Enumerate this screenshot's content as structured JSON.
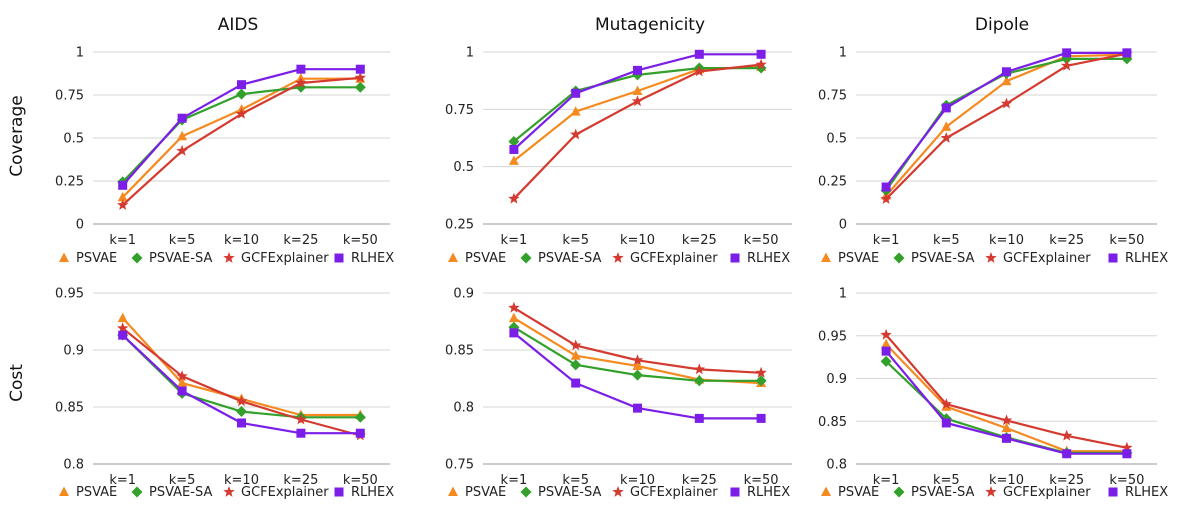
{
  "colors": {
    "PSVAE": "#f58a21",
    "PSVAE-SA": "#33a02c",
    "GCFExplainer": "#d43a2f",
    "RLHEX": "#7b1fe8"
  },
  "markers": {
    "PSVAE": "triangle",
    "PSVAE-SA": "diamond",
    "GCFExplainer": "star",
    "RLHEX": "square"
  },
  "row_labels": [
    "Coverage",
    "Cost"
  ],
  "chart_data": [
    {
      "type": "line",
      "title": "AIDS",
      "ylabel": "Coverage",
      "categories": [
        "k=1",
        "k=5",
        "k=10",
        "k=25",
        "k=50"
      ],
      "ylim": [
        0,
        1
      ],
      "yticks": [
        "0",
        "0.25",
        "0.5",
        "0.75",
        "1"
      ],
      "grid": true,
      "legend": "bottom",
      "series": [
        {
          "name": "PSVAE",
          "values": [
            0.155,
            0.51,
            0.665,
            0.845,
            0.845
          ]
        },
        {
          "name": "PSVAE-SA",
          "values": [
            0.245,
            0.605,
            0.755,
            0.795,
            0.795
          ]
        },
        {
          "name": "GCFExplainer",
          "values": [
            0.11,
            0.425,
            0.64,
            0.82,
            0.85
          ]
        },
        {
          "name": "RLHEX",
          "values": [
            0.225,
            0.615,
            0.81,
            0.9,
            0.9
          ]
        }
      ]
    },
    {
      "type": "line",
      "title": "Mutagenicity",
      "ylabel": "Coverage",
      "categories": [
        "k=1",
        "k=5",
        "k=10",
        "k=25",
        "k=50"
      ],
      "ylim": [
        0.25,
        1
      ],
      "yticks": [
        "0.25",
        "0.5",
        "0.75",
        "1"
      ],
      "grid": true,
      "legend": "bottom",
      "series": [
        {
          "name": "PSVAE",
          "values": [
            0.525,
            0.74,
            0.83,
            0.925,
            0.935
          ]
        },
        {
          "name": "PSVAE-SA",
          "values": [
            0.61,
            0.83,
            0.9,
            0.93,
            0.93
          ]
        },
        {
          "name": "GCFExplainer",
          "values": [
            0.36,
            0.64,
            0.785,
            0.915,
            0.945
          ]
        },
        {
          "name": "RLHEX",
          "values": [
            0.575,
            0.82,
            0.92,
            0.99,
            0.99
          ]
        }
      ]
    },
    {
      "type": "line",
      "title": "Dipole",
      "ylabel": "Coverage",
      "categories": [
        "k=1",
        "k=5",
        "k=10",
        "k=25",
        "k=50"
      ],
      "ylim": [
        0,
        1
      ],
      "yticks": [
        "0",
        "0.25",
        "0.5",
        "0.75",
        "1"
      ],
      "grid": true,
      "legend": "bottom",
      "series": [
        {
          "name": "PSVAE",
          "values": [
            0.165,
            0.565,
            0.83,
            0.975,
            0.985
          ]
        },
        {
          "name": "PSVAE-SA",
          "values": [
            0.195,
            0.69,
            0.875,
            0.96,
            0.96
          ]
        },
        {
          "name": "GCFExplainer",
          "values": [
            0.145,
            0.5,
            0.7,
            0.92,
            0.99
          ]
        },
        {
          "name": "RLHEX",
          "values": [
            0.215,
            0.675,
            0.885,
            0.995,
            0.995
          ]
        }
      ]
    },
    {
      "type": "line",
      "title": "",
      "ylabel": "Cost",
      "categories": [
        "k=1",
        "k=5",
        "k=10",
        "k=25",
        "k=50"
      ],
      "ylim": [
        0.8,
        0.95
      ],
      "yticks": [
        "0.8",
        "0.85",
        "0.9",
        "0.95"
      ],
      "grid": true,
      "legend": "bottom",
      "series": [
        {
          "name": "PSVAE",
          "values": [
            0.928,
            0.871,
            0.857,
            0.843,
            0.843
          ]
        },
        {
          "name": "PSVAE-SA",
          "values": [
            0.913,
            0.862,
            0.846,
            0.841,
            0.841
          ]
        },
        {
          "name": "GCFExplainer",
          "values": [
            0.919,
            0.877,
            0.855,
            0.839,
            0.825
          ]
        },
        {
          "name": "RLHEX",
          "values": [
            0.913,
            0.864,
            0.836,
            0.827,
            0.827
          ]
        }
      ]
    },
    {
      "type": "line",
      "title": "",
      "ylabel": "Cost",
      "categories": [
        "k=1",
        "k=5",
        "k=10",
        "k=25",
        "k=50"
      ],
      "ylim": [
        0.75,
        0.9
      ],
      "yticks": [
        "0.75",
        "0.8",
        "0.85",
        "0.9"
      ],
      "grid": true,
      "legend": "bottom",
      "series": [
        {
          "name": "PSVAE",
          "values": [
            0.878,
            0.845,
            0.836,
            0.824,
            0.821
          ]
        },
        {
          "name": "PSVAE-SA",
          "values": [
            0.87,
            0.837,
            0.828,
            0.823,
            0.823
          ]
        },
        {
          "name": "GCFExplainer",
          "values": [
            0.887,
            0.854,
            0.841,
            0.833,
            0.83
          ]
        },
        {
          "name": "RLHEX",
          "values": [
            0.865,
            0.821,
            0.799,
            0.79,
            0.79
          ]
        }
      ]
    },
    {
      "type": "line",
      "title": "",
      "ylabel": "Cost",
      "categories": [
        "k=1",
        "k=5",
        "k=10",
        "k=25",
        "k=50"
      ],
      "ylim": [
        0.8,
        1
      ],
      "yticks": [
        "0.8",
        "0.85",
        "0.9",
        "0.95",
        "1"
      ],
      "grid": true,
      "legend": "bottom",
      "series": [
        {
          "name": "PSVAE",
          "values": [
            0.94,
            0.867,
            0.842,
            0.815,
            0.815
          ]
        },
        {
          "name": "PSVAE-SA",
          "values": [
            0.92,
            0.853,
            0.831,
            0.813,
            0.813
          ]
        },
        {
          "name": "GCFExplainer",
          "values": [
            0.951,
            0.87,
            0.851,
            0.833,
            0.819
          ]
        },
        {
          "name": "RLHEX",
          "values": [
            0.932,
            0.848,
            0.83,
            0.812,
            0.812
          ]
        }
      ]
    }
  ]
}
